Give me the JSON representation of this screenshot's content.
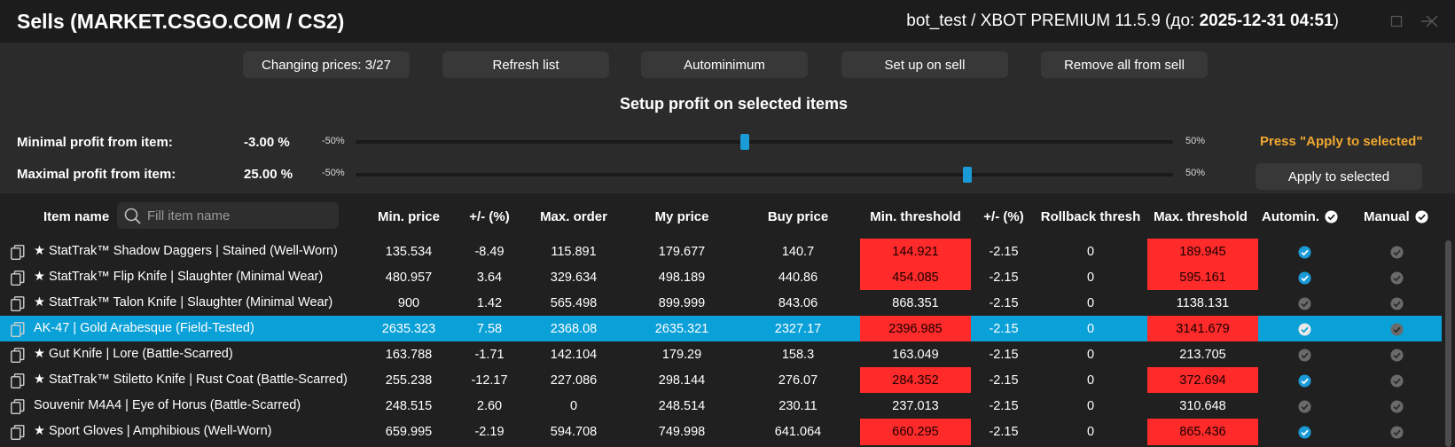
{
  "window": {
    "title": "Sells (MARKET.CSGO.COM / CS2)",
    "bot_info_prefix": "bot_test / XBOT PREMIUM 11.5.9 (до: ",
    "bot_info_date": "2025-12-31 04:51",
    "bot_info_suffix": ")"
  },
  "toolbar": {
    "changing_prices": "Changing prices: 3/27",
    "refresh": "Refresh list",
    "autominimum": "Autominimum",
    "set_up_on_sell": "Set up on sell",
    "remove_all": "Remove all from sell"
  },
  "profit": {
    "title": "Setup profit on selected items",
    "min_label": "Minimal profit from item:",
    "min_value": "-3.00  %",
    "max_label": "Maximal profit from item:",
    "max_value": "25.00  %",
    "range_min": "-50%",
    "range_max": "50%",
    "min_slider_pct": 47.6,
    "max_slider_pct": 74.8,
    "note": "Press \"Apply to selected\"",
    "apply": "Apply to selected"
  },
  "table": {
    "search_placeholder": "Fill item name",
    "headers": {
      "name": "Item name",
      "min_price": "Min. price",
      "pct1": "+/- (%)",
      "max_order": "Max. order",
      "my_price": "My price",
      "buy_price": "Buy price",
      "min_threshold": "Min. threshold",
      "pct2": "+/- (%)",
      "rollback": "Rollback thresh",
      "max_threshold": "Max. threshold",
      "automin": "Automin.",
      "manual": "Manual"
    },
    "rows": [
      {
        "name": "★ StatTrak™ Shadow Daggers | Stained (Well-Worn)",
        "min_price": "135.534",
        "pct1": "-8.49",
        "max_order": "115.891",
        "my_price": "179.677",
        "buy_price": "140.7",
        "min_threshold": "144.921",
        "min_red": true,
        "pct2": "-2.15",
        "rollback": "0",
        "max_threshold": "189.945",
        "max_red": true,
        "automin": true,
        "selected": false
      },
      {
        "name": "★ StatTrak™ Flip Knife | Slaughter (Minimal Wear)",
        "min_price": "480.957",
        "pct1": "3.64",
        "max_order": "329.634",
        "my_price": "498.189",
        "buy_price": "440.86",
        "min_threshold": "454.085",
        "min_red": true,
        "pct2": "-2.15",
        "rollback": "0",
        "max_threshold": "595.161",
        "max_red": true,
        "automin": true,
        "selected": false
      },
      {
        "name": "★ StatTrak™ Talon Knife | Slaughter (Minimal Wear)",
        "min_price": "900",
        "pct1": "1.42",
        "max_order": "565.498",
        "my_price": "899.999",
        "buy_price": "843.06",
        "min_threshold": "868.351",
        "min_red": false,
        "pct2": "-2.15",
        "rollback": "0",
        "max_threshold": "1138.131",
        "max_red": false,
        "automin": false,
        "selected": false
      },
      {
        "name": "AK-47 | Gold Arabesque (Field-Tested)",
        "min_price": "2635.323",
        "pct1": "7.58",
        "max_order": "2368.08",
        "my_price": "2635.321",
        "buy_price": "2327.17",
        "min_threshold": "2396.985",
        "min_red": true,
        "pct2": "-2.15",
        "rollback": "0",
        "max_threshold": "3141.679",
        "max_red": true,
        "automin": false,
        "selected": true
      },
      {
        "name": "★ Gut Knife | Lore (Battle-Scarred)",
        "min_price": "163.788",
        "pct1": "-1.71",
        "max_order": "142.104",
        "my_price": "179.29",
        "buy_price": "158.3",
        "min_threshold": "163.049",
        "min_red": false,
        "pct2": "-2.15",
        "rollback": "0",
        "max_threshold": "213.705",
        "max_red": false,
        "automin": false,
        "selected": false
      },
      {
        "name": "★ StatTrak™ Stiletto Knife | Rust Coat (Battle-Scarred)",
        "min_price": "255.238",
        "pct1": "-12.17",
        "max_order": "227.086",
        "my_price": "298.144",
        "buy_price": "276.07",
        "min_threshold": "284.352",
        "min_red": true,
        "pct2": "-2.15",
        "rollback": "0",
        "max_threshold": "372.694",
        "max_red": true,
        "automin": true,
        "selected": false
      },
      {
        "name": "Souvenir M4A4 | Eye of Horus (Battle-Scarred)",
        "min_price": "248.515",
        "pct1": "2.60",
        "max_order": "0",
        "my_price": "248.514",
        "buy_price": "230.11",
        "min_threshold": "237.013",
        "min_red": false,
        "pct2": "-2.15",
        "rollback": "0",
        "max_threshold": "310.648",
        "max_red": false,
        "automin": false,
        "selected": false
      },
      {
        "name": "★ Sport Gloves | Amphibious (Well-Worn)",
        "min_price": "659.995",
        "pct1": "-2.19",
        "max_order": "594.708",
        "my_price": "749.998",
        "buy_price": "641.064",
        "min_threshold": "660.295",
        "min_red": true,
        "pct2": "-2.15",
        "rollback": "0",
        "max_threshold": "865.436",
        "max_red": true,
        "automin": true,
        "selected": false
      }
    ]
  },
  "colors": {
    "accent": "#1a9ad6",
    "selected_row": "#0aa0d8",
    "threshold_red": "#ff2a2a",
    "note_orange": "#f0a830"
  }
}
